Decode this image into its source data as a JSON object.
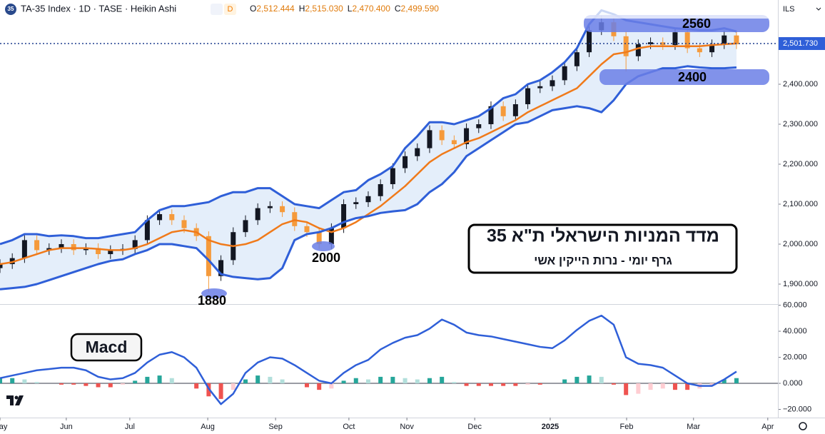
{
  "header": {
    "badge": "35",
    "title": "TA-35 Index · 1D · TASE · Heikin Ashi",
    "flag": "D",
    "ohlc": [
      {
        "key": "O",
        "value": "2,512.444"
      },
      {
        "key": "H",
        "value": "2,515.030"
      },
      {
        "key": "L",
        "value": "2,470.400"
      },
      {
        "key": "C",
        "value": "2,499.590"
      }
    ]
  },
  "currency": "ILS",
  "annotations": [
    "2560",
    "2400",
    "1880",
    "2000",
    "Macd"
  ],
  "caption": {
    "title": "מדד המניות הישראלי ת\"א 35",
    "subtitle": "גרף  יומי   -  נרות הייקין אשי"
  },
  "chart_data": [
    {
      "type": "candlestick",
      "up_color": "#131722",
      "down_color": "#f59a3b",
      "xlim": [
        0,
        253.5
      ],
      "ylim": [
        1851.8,
        2610.7
      ],
      "yticks": [
        {
          "value": 1900,
          "label": "1,900.000"
        },
        {
          "value": 2000,
          "label": "2,000.000"
        },
        {
          "value": 2100,
          "label": "2,100.000"
        },
        {
          "value": 2200,
          "label": "2,200.000"
        },
        {
          "value": 2300,
          "label": "2,300.000"
        },
        {
          "value": 2400,
          "label": "2,400.000"
        }
      ],
      "last_price": {
        "value": 2501.73,
        "label": "2,501.730"
      },
      "x": [
        0,
        4,
        8,
        12,
        16,
        20,
        24,
        28,
        32,
        36,
        40,
        44,
        48,
        52,
        56,
        60,
        64,
        68,
        72,
        76,
        80,
        84,
        88,
        92,
        96,
        100,
        104,
        108,
        112,
        116,
        120,
        124,
        128,
        132,
        136,
        140,
        144,
        148,
        152,
        156,
        160,
        164,
        168,
        172,
        176,
        180,
        184,
        188,
        192,
        196,
        200,
        204,
        208,
        212,
        216,
        220,
        224,
        228,
        232,
        236,
        240
      ],
      "open": [
        1940,
        1950,
        1965,
        2010,
        1985,
        1990,
        2000,
        1985,
        1990,
        1975,
        1985,
        1988,
        2010,
        2060,
        2075,
        2060,
        2040,
        2020,
        1920,
        1960,
        2030,
        2060,
        2090,
        2095,
        2080,
        2045,
        2030,
        2000,
        2040,
        2100,
        2105,
        2120,
        2150,
        2190,
        2220,
        2240,
        2285,
        2260,
        2250,
        2290,
        2300,
        2345,
        2320,
        2350,
        2390,
        2395,
        2410,
        2445,
        2480,
        2535,
        2555,
        2520,
        2470,
        2500,
        2505,
        2498,
        2530,
        2490,
        2480,
        2500,
        2522
      ],
      "high": [
        1962,
        1977,
        2022,
        2022,
        2002,
        2012,
        2012,
        2002,
        2002,
        1997,
        2000,
        2022,
        2072,
        2087,
        2087,
        2072,
        2052,
        2032,
        1972,
        2042,
        2072,
        2102,
        2107,
        2107,
        2092,
        2057,
        2042,
        2052,
        2112,
        2117,
        2132,
        2162,
        2202,
        2232,
        2252,
        2297,
        2297,
        2272,
        2302,
        2312,
        2357,
        2357,
        2362,
        2402,
        2407,
        2422,
        2457,
        2492,
        2547,
        2572,
        2567,
        2532,
        2512,
        2517,
        2517,
        2542,
        2542,
        2502,
        2512,
        2534,
        2534
      ],
      "low": [
        1928,
        1938,
        1953,
        1973,
        1973,
        1978,
        1973,
        1973,
        1963,
        1963,
        1973,
        1976,
        1998,
        2048,
        2048,
        2028,
        2008,
        1880,
        1908,
        1948,
        2018,
        2048,
        2078,
        2068,
        2033,
        2018,
        1988,
        1988,
        2028,
        2088,
        2093,
        2108,
        2138,
        2178,
        2208,
        2228,
        2248,
        2238,
        2238,
        2278,
        2288,
        2308,
        2308,
        2338,
        2378,
        2383,
        2398,
        2433,
        2468,
        2523,
        2508,
        2432,
        2458,
        2488,
        2486,
        2486,
        2478,
        2468,
        2468,
        2488,
        2488
      ],
      "close": [
        1950,
        1965,
        2010,
        1985,
        1990,
        2000,
        1985,
        1990,
        1975,
        1985,
        1988,
        2010,
        2060,
        2075,
        2060,
        2040,
        2020,
        1920,
        1960,
        2030,
        2060,
        2090,
        2095,
        2080,
        2045,
        2030,
        2000,
        2040,
        2100,
        2105,
        2120,
        2150,
        2190,
        2220,
        2240,
        2285,
        2260,
        2250,
        2290,
        2300,
        2345,
        2320,
        2350,
        2390,
        2395,
        2410,
        2445,
        2480,
        2535,
        2555,
        2520,
        2470,
        2500,
        2505,
        2498,
        2530,
        2490,
        2480,
        2500,
        2522,
        2500
      ],
      "band_fill": "#e4eefa",
      "series": [
        {
          "color": "#2f5fd8",
          "values": [
            2000,
            2010,
            2025,
            2025,
            2020,
            2022,
            2020,
            2015,
            2015,
            2020,
            2025,
            2030,
            2060,
            2085,
            2095,
            2095,
            2100,
            2105,
            2120,
            2130,
            2130,
            2140,
            2140,
            2120,
            2100,
            2095,
            2090,
            2110,
            2130,
            2135,
            2160,
            2175,
            2195,
            2240,
            2270,
            2305,
            2305,
            2300,
            2310,
            2320,
            2340,
            2365,
            2375,
            2400,
            2410,
            2430,
            2455,
            2490,
            2550,
            2585,
            2575,
            2560,
            2555,
            2550,
            2545,
            2540,
            2538,
            2535,
            2535,
            2540,
            2532
          ]
        },
        {
          "color": "#f07a1a",
          "values": [
            1950,
            1955,
            1965,
            1975,
            1985,
            1990,
            1990,
            1990,
            1988,
            1985,
            1985,
            1990,
            2000,
            2015,
            2030,
            2035,
            2030,
            2010,
            2000,
            1995,
            2000,
            2010,
            2030,
            2050,
            2060,
            2055,
            2040,
            2030,
            2040,
            2055,
            2075,
            2095,
            2120,
            2145,
            2175,
            2205,
            2225,
            2240,
            2255,
            2265,
            2280,
            2295,
            2310,
            2330,
            2345,
            2360,
            2375,
            2390,
            2420,
            2450,
            2475,
            2480,
            2490,
            2495,
            2495,
            2495,
            2495,
            2495,
            2498,
            2500,
            2502
          ]
        },
        {
          "color": "#2f5fd8",
          "values": [
            1887,
            1890,
            1893,
            1900,
            1910,
            1920,
            1930,
            1940,
            1950,
            1958,
            1962,
            1975,
            1985,
            2000,
            2000,
            1995,
            1990,
            1960,
            1925,
            1918,
            1915,
            1912,
            1915,
            1940,
            2010,
            2025,
            2030,
            2040,
            2055,
            2065,
            2070,
            2078,
            2082,
            2085,
            2100,
            2130,
            2150,
            2180,
            2220,
            2240,
            2260,
            2280,
            2300,
            2305,
            2320,
            2335,
            2340,
            2345,
            2340,
            2330,
            2360,
            2400,
            2420,
            2430,
            2440,
            2440,
            2445,
            2442,
            2440,
            2440,
            2442
          ]
        }
      ]
    },
    {
      "type": "macd",
      "xlim": [
        0,
        253.5
      ],
      "ylim": [
        -26.3,
        60.3
      ],
      "yticks": [
        {
          "value": -20,
          "label": "−20.000"
        },
        {
          "value": 0,
          "label": "0.000"
        },
        {
          "value": 20,
          "label": "20.000"
        },
        {
          "value": 40,
          "label": "40.000"
        },
        {
          "value": 60,
          "label": "60.000"
        }
      ],
      "xticks": [
        {
          "value": 0,
          "label": "May"
        },
        {
          "value": 21.6,
          "label": "Jun"
        },
        {
          "value": 42.3,
          "label": "Jul"
        },
        {
          "value": 67.7,
          "label": "Aug"
        },
        {
          "value": 89.8,
          "label": "Sep"
        },
        {
          "value": 113.7,
          "label": "Oct"
        },
        {
          "value": 132.6,
          "label": "Nov"
        },
        {
          "value": 154.7,
          "label": "Dec"
        },
        {
          "value": 179.3,
          "label": "2025"
        },
        {
          "value": 204.2,
          "label": "Feb"
        },
        {
          "value": 226,
          "label": "Mar"
        },
        {
          "value": 250.2,
          "label": "Apr"
        }
      ],
      "x": [
        0,
        4,
        8,
        12,
        16,
        20,
        24,
        28,
        32,
        36,
        40,
        44,
        48,
        52,
        56,
        60,
        64,
        68,
        72,
        76,
        80,
        84,
        88,
        92,
        96,
        100,
        104,
        108,
        112,
        116,
        120,
        124,
        128,
        132,
        136,
        140,
        144,
        148,
        152,
        156,
        160,
        164,
        168,
        172,
        176,
        180,
        184,
        188,
        192,
        196,
        200,
        204,
        208,
        212,
        216,
        220,
        224,
        228,
        232,
        236,
        240
      ],
      "line_color": "#2f5fd8",
      "histogram_colors": {
        "up_grow": "#26a69a",
        "up_fall": "#b2dfdb",
        "down_grow": "#ef5350",
        "down_fall": "#ffcdd2"
      },
      "macd": [
        4,
        6,
        8,
        10,
        11,
        12,
        12,
        10,
        5,
        3,
        4,
        8,
        16,
        22,
        24,
        20,
        12,
        -4,
        -16,
        -8,
        8,
        16,
        20,
        19,
        14,
        8,
        2,
        0,
        8,
        14,
        18,
        26,
        31,
        35,
        37,
        42,
        49,
        45,
        39,
        37,
        36,
        34,
        32,
        30,
        28,
        27,
        33,
        41,
        48,
        52,
        45,
        20,
        15,
        14,
        12,
        6,
        0,
        -2,
        -2,
        3,
        9
      ],
      "histogram": [
        4,
        4,
        3,
        1,
        0,
        -1,
        -1,
        -2,
        -3,
        -3,
        -1,
        2,
        5,
        6,
        4,
        0,
        -4,
        -10,
        -12,
        -5,
        3,
        6,
        5,
        3,
        0,
        -3,
        -5,
        -4,
        2,
        4,
        3,
        5,
        5,
        4,
        3,
        4,
        5,
        1,
        -2,
        -2,
        -2,
        -2,
        -2,
        -1,
        -1,
        0,
        3,
        5,
        6,
        5,
        -1,
        -9,
        -8,
        -5,
        -4,
        -5,
        -5,
        -4,
        -2,
        3,
        4
      ]
    }
  ]
}
